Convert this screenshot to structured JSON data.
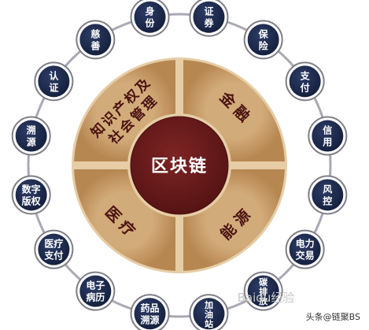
{
  "center": {
    "label": "区块链"
  },
  "segments": [
    {
      "id": "finance",
      "lines": [
        "金融"
      ]
    },
    {
      "id": "energy",
      "lines": [
        "能源"
      ]
    },
    {
      "id": "medical",
      "lines": [
        "医疗"
      ]
    },
    {
      "id": "ip-social",
      "lines": [
        "知识产权及",
        "社会管理"
      ]
    }
  ],
  "outer_nodes": [
    {
      "id": "identity",
      "lines": [
        "身",
        "份"
      ]
    },
    {
      "id": "securities",
      "lines": [
        "证",
        "券"
      ]
    },
    {
      "id": "insurance",
      "lines": [
        "保",
        "险"
      ]
    },
    {
      "id": "payment",
      "lines": [
        "支",
        "付"
      ]
    },
    {
      "id": "credit",
      "lines": [
        "信",
        "用"
      ]
    },
    {
      "id": "risk-control",
      "lines": [
        "风",
        "控"
      ]
    },
    {
      "id": "power-trading",
      "lines": [
        "电力",
        "交易"
      ]
    },
    {
      "id": "carbon-trading",
      "lines": [
        "碳",
        "排",
        "放"
      ]
    },
    {
      "id": "gas-station",
      "lines": [
        "加",
        "油",
        "站"
      ]
    },
    {
      "id": "drug-tracing",
      "lines": [
        "药品",
        "溯源"
      ]
    },
    {
      "id": "emr",
      "lines": [
        "电子",
        "病历"
      ]
    },
    {
      "id": "medical-payment",
      "lines": [
        "医疗",
        "支付"
      ]
    },
    {
      "id": "digital-rights",
      "lines": [
        "数字",
        "版权"
      ]
    },
    {
      "id": "traceability",
      "lines": [
        "溯",
        "源"
      ]
    },
    {
      "id": "authentication",
      "lines": [
        "认",
        "证"
      ]
    },
    {
      "id": "charity",
      "lines": [
        "慈",
        "善"
      ]
    }
  ],
  "watermark": {
    "text": "Baidu经验"
  },
  "credit": {
    "text": "头条@链聚BS"
  },
  "colors": {
    "node": "#1c2a4f",
    "node_ring": "#7e7e8a",
    "connector": "#a9a9b4",
    "segment": "#c59a66",
    "segment_edge": "#e6cda6",
    "center": "#6a1c1c",
    "segment_text": "#4a1210"
  }
}
